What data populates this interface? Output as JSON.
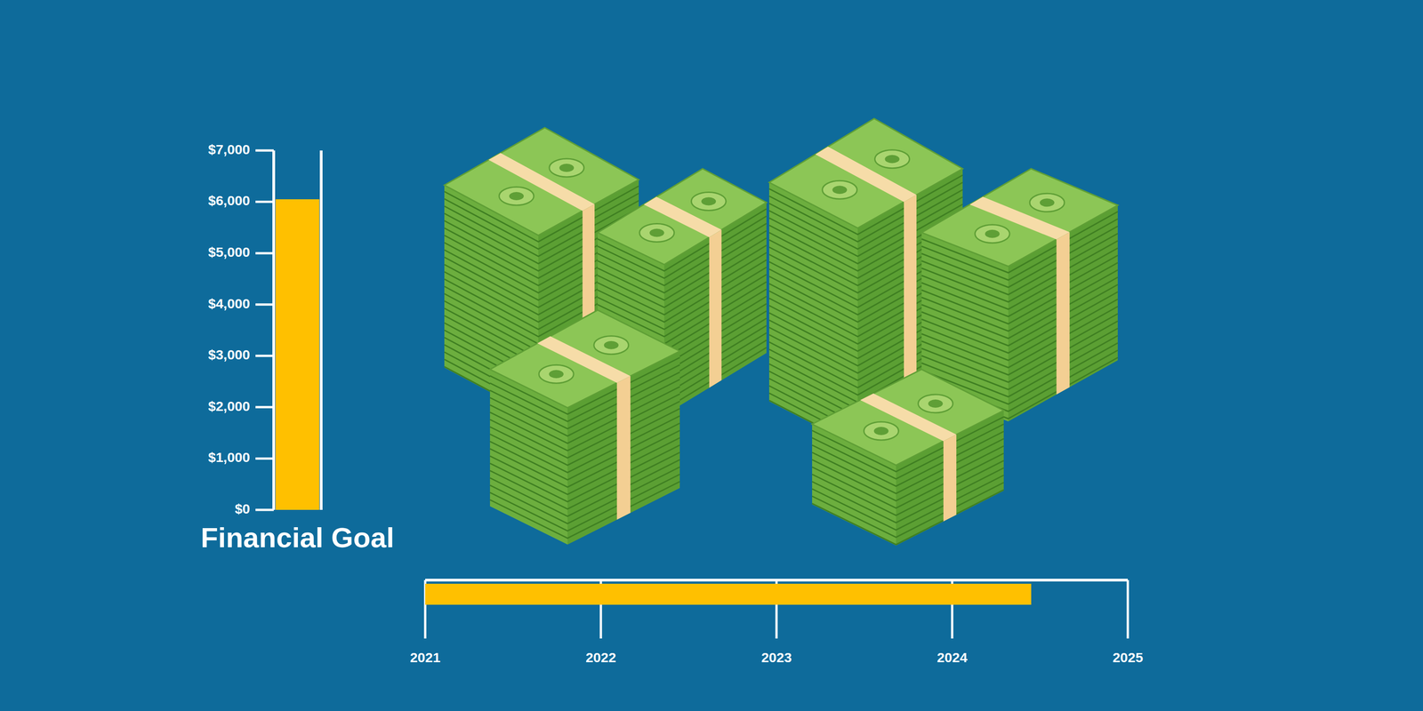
{
  "chart_data": [
    {
      "type": "bar",
      "xlabel": "Financial Goal",
      "categories": [
        null
      ],
      "values": [
        6050
      ],
      "color": "#ffc000",
      "ylim": [
        0,
        7000
      ],
      "yticks": [
        {
          "value": 0,
          "label": "$0"
        },
        {
          "value": 1000,
          "label": "$1,000"
        },
        {
          "value": 2000,
          "label": "$2,000"
        },
        {
          "value": 3000,
          "label": "$3,000"
        },
        {
          "value": 4000,
          "label": "$4,000"
        },
        {
          "value": 5000,
          "label": "$5,000"
        },
        {
          "value": 6000,
          "label": "$6,000"
        },
        {
          "value": 7000,
          "label": "$7,000"
        }
      ]
    },
    {
      "type": "bar",
      "orientation": "horizontal",
      "categories": [
        null
      ],
      "values": [
        2024.45
      ],
      "color": "#ffc000",
      "xlim": [
        2021,
        2025
      ],
      "xticks": [
        2021,
        2022,
        2023,
        2024,
        2025
      ]
    }
  ]
}
